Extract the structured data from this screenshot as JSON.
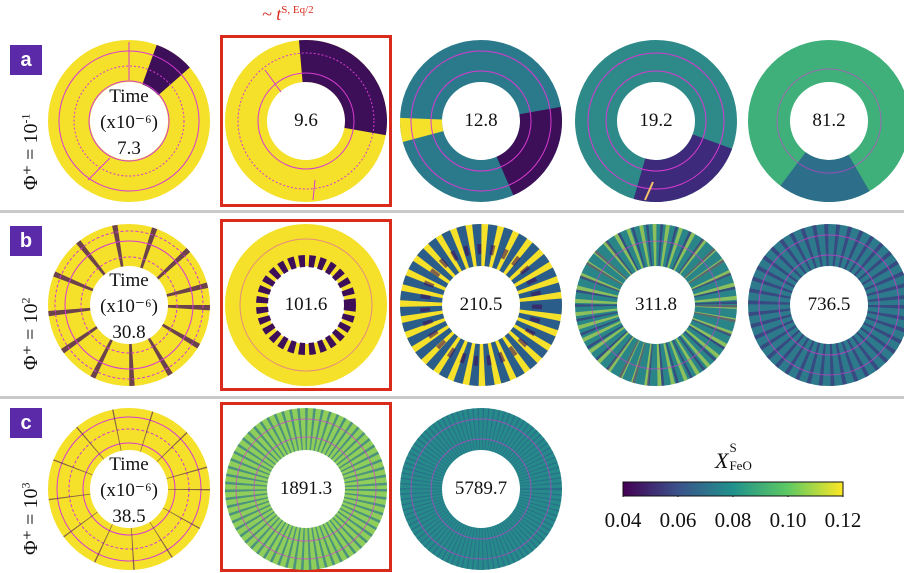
{
  "top_annotation": {
    "prefix": "~ t",
    "superscript": "S, Eq/2"
  },
  "rows": [
    {
      "badge": "a",
      "label_base": "Φ⁺ = 10",
      "label_exp": "-1",
      "time_label": [
        "Time",
        "(x10⁻⁶)"
      ],
      "times": [
        "7.3",
        "9.6",
        "12.8",
        "19.2",
        "81.2"
      ]
    },
    {
      "badge": "b",
      "label_base": "Φ⁺ = 10",
      "label_exp": "2",
      "time_label": [
        "Time",
        "(x10⁻⁶)"
      ],
      "times": [
        "30.8",
        "101.6",
        "210.5",
        "311.8",
        "736.5"
      ]
    },
    {
      "badge": "c",
      "label_base": "Φ⁺ = 10",
      "label_exp": "3",
      "time_label": [
        "Time",
        "(x10⁻⁶)"
      ],
      "times": [
        "38.5",
        "1891.3",
        "5789.7"
      ]
    }
  ],
  "colorbar": {
    "title_var": "X",
    "title_sup": "S",
    "title_sub": "FeO",
    "ticks": [
      "0.04",
      "0.06",
      "0.08",
      "0.10",
      "0.12"
    ],
    "colors": [
      "#440154",
      "#3b528b",
      "#21918c",
      "#5ec962",
      "#fde725"
    ]
  }
}
